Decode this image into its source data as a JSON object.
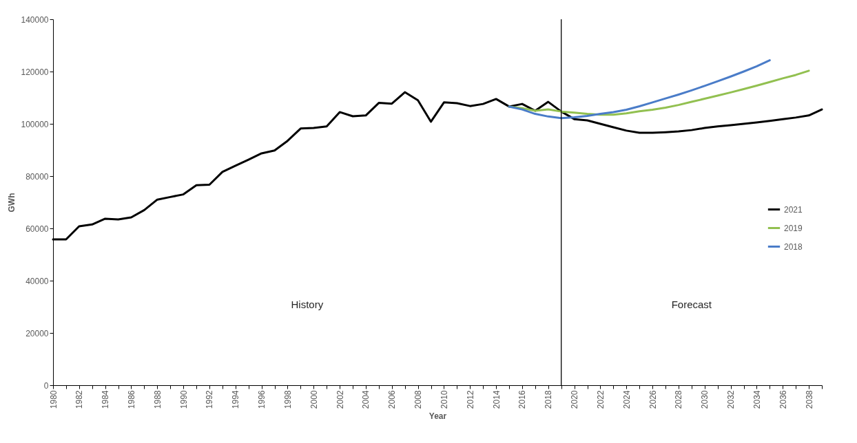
{
  "chart_data": {
    "type": "line",
    "xlabel": "Year",
    "ylabel": "GWh",
    "x": [
      1980,
      1981,
      1982,
      1983,
      1984,
      1985,
      1986,
      1987,
      1988,
      1989,
      1990,
      1991,
      1992,
      1993,
      1994,
      1995,
      1996,
      1997,
      1998,
      1999,
      2000,
      2001,
      2002,
      2003,
      2004,
      2005,
      2006,
      2007,
      2008,
      2009,
      2010,
      2011,
      2012,
      2013,
      2014,
      2015,
      2016,
      2017,
      2018,
      2019,
      2020,
      2021,
      2022,
      2023,
      2024,
      2025,
      2026,
      2027,
      2028,
      2029,
      2030,
      2031,
      2032,
      2033,
      2034,
      2035,
      2036,
      2037,
      2038,
      2039
    ],
    "series": [
      {
        "name": "2021",
        "color": "#000000",
        "values": [
          55800,
          55800,
          60800,
          61500,
          63700,
          63400,
          64200,
          67000,
          71000,
          72000,
          73000,
          76500,
          76700,
          81600,
          84000,
          86300,
          88700,
          89800,
          93500,
          98200,
          98400,
          99000,
          104500,
          102900,
          103200,
          108000,
          107700,
          112100,
          109000,
          100800,
          108200,
          107900,
          106800,
          107600,
          109500,
          106600,
          107600,
          105000,
          108400,
          104700,
          101800,
          101300,
          100000,
          98700,
          97400,
          96600,
          96600,
          96800,
          97100,
          97600,
          98400,
          99000,
          99500,
          100000,
          100500,
          101100,
          101800,
          102400,
          103200,
          105500
        ]
      },
      {
        "name": "2019",
        "color": "#92c050",
        "x": [
          2015,
          2016,
          2017,
          2018,
          2019,
          2020,
          2021,
          2022,
          2023,
          2024,
          2025,
          2026,
          2027,
          2028,
          2029,
          2030,
          2031,
          2032,
          2033,
          2034,
          2035,
          2036,
          2037,
          2038
        ],
        "values": [
          106600,
          106000,
          105000,
          105500,
          104700,
          104300,
          103800,
          103500,
          103500,
          104000,
          104800,
          105400,
          106200,
          107200,
          108400,
          109600,
          110800,
          112000,
          113300,
          114600,
          116000,
          117400,
          118700,
          120300
        ]
      },
      {
        "name": "2018",
        "color": "#4a7cc8",
        "x": [
          2015,
          2016,
          2017,
          2018,
          2019,
          2020,
          2021,
          2022,
          2023,
          2024,
          2025,
          2026,
          2027,
          2028,
          2029,
          2030,
          2031,
          2032,
          2033,
          2034,
          2035
        ],
        "values": [
          106600,
          105500,
          103800,
          102800,
          102200,
          102500,
          103000,
          103800,
          104500,
          105400,
          106700,
          108200,
          109700,
          111200,
          112800,
          114500,
          116300,
          118100,
          120000,
          122000,
          124300
        ]
      }
    ],
    "xlim": [
      1980,
      2039
    ],
    "xticks": [
      1980,
      {
        "value": 1981,
        "label": null
      },
      1982,
      {
        "value": 1983,
        "label": null
      },
      1984,
      {
        "value": 1985,
        "label": null
      },
      1986,
      {
        "value": 1987,
        "label": null
      },
      1988,
      {
        "value": 1989,
        "label": null
      },
      1990,
      {
        "value": 1991,
        "label": null
      },
      1992,
      {
        "value": 1993,
        "label": null
      },
      1994,
      {
        "value": 1995,
        "label": null
      },
      1996,
      {
        "value": 1997,
        "label": null
      },
      1998,
      {
        "value": 1999,
        "label": null
      },
      2000,
      {
        "value": 2001,
        "label": null
      },
      2002,
      {
        "value": 2003,
        "label": null
      },
      2004,
      {
        "value": 2005,
        "label": null
      },
      2006,
      {
        "value": 2007,
        "label": null
      },
      2008,
      {
        "value": 2009,
        "label": null
      },
      2010,
      {
        "value": 2011,
        "label": null
      },
      2012,
      {
        "value": 2013,
        "label": null
      },
      2014,
      {
        "value": 2015,
        "label": null
      },
      2016,
      {
        "value": 2017,
        "label": null
      },
      2018,
      {
        "value": 2019,
        "label": null
      },
      2020,
      {
        "value": 2021,
        "label": null
      },
      2022,
      {
        "value": 2023,
        "label": null
      },
      2024,
      {
        "value": 2025,
        "label": null
      },
      2026,
      {
        "value": 2027,
        "label": null
      },
      2028,
      {
        "value": 2029,
        "label": null
      },
      2030,
      {
        "value": 2031,
        "label": null
      },
      2032,
      {
        "value": 2033,
        "label": null
      },
      2034,
      {
        "value": 2035,
        "label": null
      },
      2036,
      {
        "value": 2037,
        "label": null
      },
      2038,
      {
        "value": 2039,
        "label": null
      }
    ],
    "ylim": [
      0,
      140000
    ],
    "yticks": [
      0,
      20000,
      40000,
      60000,
      80000,
      100000,
      120000,
      140000
    ],
    "ref_lines": [
      {
        "axis": "x",
        "value": 2019,
        "color": "#000000"
      }
    ],
    "annotations": [
      "History",
      "Forecast"
    ],
    "grid": false,
    "legend": "right",
    "line_style": "solid",
    "marker": "none"
  }
}
